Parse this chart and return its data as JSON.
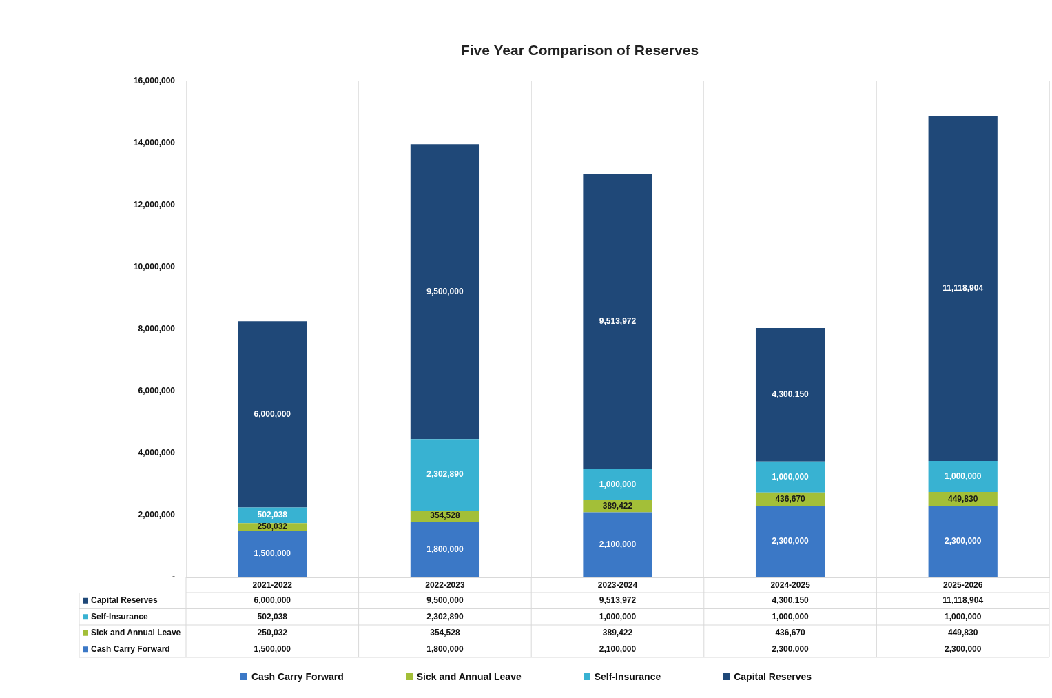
{
  "chart_data": {
    "type": "bar",
    "title": "Five Year Comparison of Reserves",
    "categories": [
      "2021-2022",
      "2022-2023",
      "2023-2024",
      "2024-2025",
      "2025-2026"
    ],
    "series": [
      {
        "name": "Cash Carry Forward",
        "color": "#3b78c6",
        "values": [
          1500000,
          1800000,
          2100000,
          2300000,
          2300000
        ],
        "value_labels": [
          "1,500,000",
          "1,800,000",
          "2,100,000",
          "2,300,000",
          "2,300,000"
        ]
      },
      {
        "name": "Sick and Annual Leave",
        "color": "#a3bf38",
        "values": [
          250032,
          354528,
          389422,
          436670,
          449830
        ],
        "value_labels": [
          "250,032",
          "354,528",
          "389,422",
          "436,670",
          "449,830"
        ]
      },
      {
        "name": "Self-Insurance",
        "color": "#38b2d2",
        "values": [
          502038,
          2302890,
          1000000,
          1000000,
          1000000
        ],
        "value_labels": [
          "502,038",
          "2,302,890",
          "1,000,000",
          "1,000,000",
          "1,000,000"
        ]
      },
      {
        "name": "Capital Reserves",
        "color": "#1f4878",
        "values": [
          6000000,
          9500000,
          9513972,
          4300150,
          11118904
        ],
        "value_labels": [
          "6,000,000",
          "9,500,000",
          "9,513,972",
          "4,300,150",
          "11,118,904"
        ]
      }
    ],
    "stacked": true,
    "ylim": [
      0,
      16000000
    ],
    "yticks": [
      {
        "value": 0,
        "label": "-"
      },
      {
        "value": 2000000,
        "label": "2,000,000"
      },
      {
        "value": 4000000,
        "label": "4,000,000"
      },
      {
        "value": 6000000,
        "label": "6,000,000"
      },
      {
        "value": 8000000,
        "label": "8,000,000"
      },
      {
        "value": 10000000,
        "label": "10,000,000"
      },
      {
        "value": 12000000,
        "label": "12,000,000"
      },
      {
        "value": 14000000,
        "label": "14,000,000"
      },
      {
        "value": 16000000,
        "label": "16,000,000"
      }
    ],
    "grid": true,
    "legend": "bottom"
  }
}
